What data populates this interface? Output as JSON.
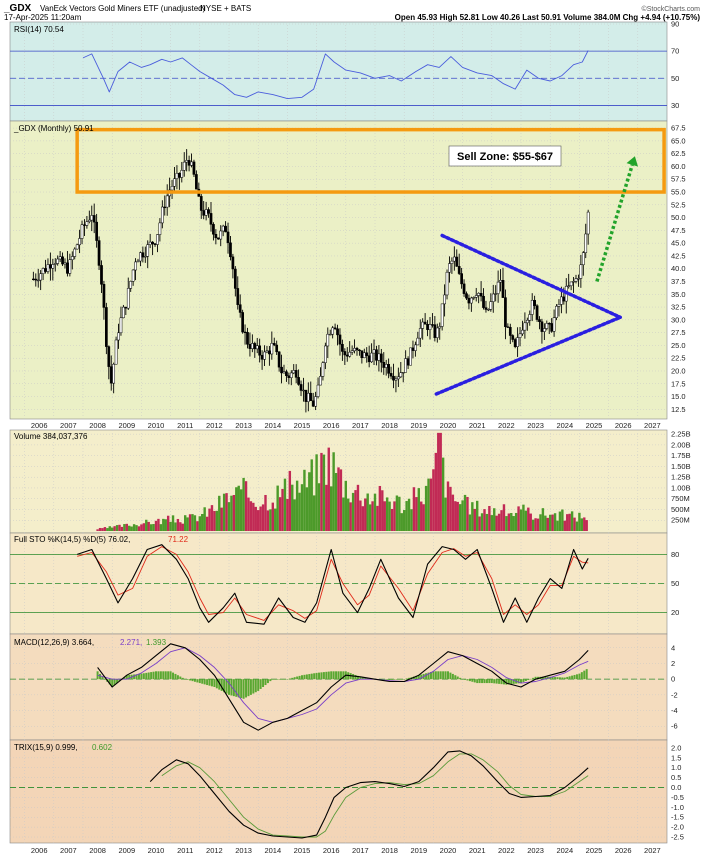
{
  "header": {
    "symbol": "_GDX",
    "name": "VanEck Vectors Gold Miners ETF (unadjusted)",
    "exchange": "NYSE + BATS",
    "date": "17-Apr-2025 11:20am",
    "quote": "Open 45.93  High 52.81  Low 40.26  Last 50.91  Volume 384.0M  Chg +4.94 (+10.75%)",
    "logo": "©StockCharts.com"
  },
  "colors": {
    "rsi_bg": "#d3ede9",
    "price_bg": "#ebf0c6",
    "volume_bg": "#f4eecb",
    "sto_bg": "#f6e8c8",
    "macd_bg": "#f4dcbe",
    "trix_bg": "#f3d5b7",
    "sell_zone": "#f59a10",
    "triangle": "#2a1fe0",
    "arrow": "#22a32a",
    "candle": "#000000",
    "vol_up": "#4c9a2a",
    "vol_down": "#c12a55",
    "rsi_line": "#4a5ddc",
    "sto_k": "#000000",
    "sto_d": "#e02a1a",
    "macd_line": "#000000",
    "macd_signal": "#7a3fc8",
    "macd_hist": "#5aa832"
  },
  "chart_data": [
    {
      "id": "rsi",
      "type": "line",
      "legend": "RSI(14) 70.54",
      "ylim": [
        20,
        90
      ],
      "yticks": [
        30,
        50,
        70,
        90
      ],
      "levels": [
        30,
        50,
        70
      ],
      "x": [
        2008.0,
        2008.3,
        2008.7,
        2008.9,
        2009.2,
        2009.6,
        2010.0,
        2010.3,
        2010.7,
        2011.0,
        2011.4,
        2011.7,
        2012.0,
        2012.4,
        2012.8,
        2013.2,
        2013.6,
        2014.0,
        2014.5,
        2015.0,
        2015.5,
        2015.9,
        2016.3,
        2016.6,
        2017.0,
        2017.5,
        2018.0,
        2018.5,
        2018.9,
        2019.4,
        2019.8,
        2020.2,
        2020.6,
        2021.0,
        2021.5,
        2022.0,
        2022.4,
        2022.8,
        2023.2,
        2023.6,
        2024.0,
        2024.4,
        2024.8,
        2025.1,
        2025.3
      ],
      "y": [
        65,
        68,
        50,
        40,
        55,
        62,
        58,
        60,
        64,
        62,
        65,
        60,
        55,
        50,
        45,
        38,
        36,
        40,
        38,
        35,
        36,
        42,
        68,
        62,
        56,
        54,
        50,
        52,
        48,
        55,
        60,
        58,
        66,
        58,
        54,
        52,
        46,
        42,
        56,
        50,
        48,
        52,
        60,
        62,
        70.54
      ]
    },
    {
      "id": "price",
      "type": "candlestick",
      "legend": "_GDX (Monthly) 50.91",
      "ylim": [
        11,
        68.5
      ],
      "yticks": [
        12.5,
        15.0,
        17.5,
        20.0,
        22.5,
        25.0,
        27.5,
        30.0,
        32.5,
        35.0,
        37.5,
        40.0,
        42.5,
        45.0,
        47.5,
        50.0,
        52.5,
        55.0,
        57.5,
        60.0,
        62.5,
        65.0,
        67.5
      ],
      "ytick_labels": [
        "12.5",
        "15.0",
        "17.5",
        "20.0",
        "22.5",
        "25.0",
        "27.5",
        "30.0",
        "32.5",
        "35.0",
        "37.5",
        "40.0",
        "42.5",
        "45.0",
        "47.5",
        "50.0",
        "52.5",
        "55.0",
        "57.5",
        "60.0",
        "62.5",
        "65.0",
        "67.5"
      ],
      "x": [
        2006.3,
        2006.7,
        2007.0,
        2007.5,
        2008.0,
        2008.3,
        2008.6,
        2008.8,
        2008.95,
        2009.2,
        2009.5,
        2009.8,
        2010.2,
        2010.5,
        2010.8,
        2011.0,
        2011.3,
        2011.6,
        2011.8,
        2012.0,
        2012.3,
        2012.6,
        2012.9,
        2013.1,
        2013.3,
        2013.6,
        2013.9,
        2014.2,
        2014.5,
        2014.8,
        2015.0,
        2015.3,
        2015.6,
        2015.9,
        2016.1,
        2016.3,
        2016.6,
        2016.9,
        2017.2,
        2017.6,
        2018.0,
        2018.4,
        2018.7,
        2018.9,
        2019.2,
        2019.5,
        2019.8,
        2020.1,
        2020.25,
        2020.5,
        2020.7,
        2020.9,
        2021.2,
        2021.5,
        2021.8,
        2022.1,
        2022.3,
        2022.5,
        2022.8,
        2023.1,
        2023.4,
        2023.7,
        2024.0,
        2024.3,
        2024.6,
        2024.9,
        2025.1,
        2025.3
      ],
      "y": [
        38,
        40,
        42,
        40,
        48,
        51,
        40,
        26,
        17,
        28,
        34,
        42,
        44,
        46,
        53,
        56,
        58,
        62,
        58,
        52,
        50,
        46,
        48,
        42,
        32,
        26,
        24,
        23,
        25,
        20,
        19,
        20,
        15,
        13.5,
        17,
        26,
        30,
        23,
        24,
        23,
        23,
        21,
        19,
        20,
        23,
        28,
        29,
        27,
        30,
        40,
        42,
        38,
        34,
        36,
        31,
        35,
        38,
        28,
        24,
        30,
        33,
        29,
        28,
        33,
        36,
        38,
        41,
        50.91
      ]
    },
    {
      "id": "volume",
      "type": "bar",
      "legend": "Volume 384,037,376",
      "ylim": [
        0,
        2.3
      ],
      "yticks": [
        0.25,
        0.5,
        0.75,
        1.0,
        1.25,
        1.5,
        1.75,
        2.0,
        2.25
      ],
      "ytick_labels": [
        "250M",
        "500M",
        "750M",
        "1.00B",
        "1.25B",
        "1.50B",
        "1.75B",
        "2.00B",
        "2.25B"
      ],
      "x": [
        2008.5,
        2009.0,
        2009.5,
        2010.0,
        2010.5,
        2011.0,
        2011.5,
        2012.0,
        2012.5,
        2013.0,
        2013.5,
        2014.0,
        2014.5,
        2015.0,
        2015.5,
        2016.0,
        2016.3,
        2016.6,
        2017.0,
        2017.5,
        2018.0,
        2018.5,
        2019.0,
        2019.5,
        2020.0,
        2020.2,
        2020.5,
        2021.0,
        2021.5,
        2022.0,
        2022.5,
        2023.0,
        2023.5,
        2024.0,
        2024.5,
        2025.0,
        2025.3
      ],
      "y": [
        0.05,
        0.1,
        0.15,
        0.2,
        0.25,
        0.3,
        0.3,
        0.4,
        0.6,
        0.9,
        1.0,
        0.8,
        0.9,
        1.1,
        1.2,
        1.5,
        1.9,
        1.7,
        1.2,
        1.0,
        0.9,
        0.85,
        0.7,
        0.9,
        1.3,
        2.28,
        1.0,
        0.7,
        0.6,
        0.55,
        0.5,
        0.5,
        0.45,
        0.45,
        0.4,
        0.38,
        0.384
      ]
    },
    {
      "id": "sto",
      "type": "line",
      "legend_main": "Full STO %K(14,5) %D(5) 76.02,",
      "legend_d": "71.22",
      "ylim": [
        0,
        100
      ],
      "yticks": [
        20,
        50,
        80
      ],
      "levels": [
        20,
        50,
        80
      ],
      "series": [
        {
          "x": [
            2007.8,
            2008.3,
            2008.8,
            2009.2,
            2009.7,
            2010.2,
            2010.7,
            2011.2,
            2011.6,
            2012.0,
            2012.3,
            2012.8,
            2013.2,
            2013.6,
            2014.2,
            2014.7,
            2015.2,
            2015.6,
            2016.0,
            2016.5,
            2016.9,
            2017.4,
            2017.8,
            2018.2,
            2018.8,
            2019.3,
            2019.8,
            2020.3,
            2020.7,
            2021.1,
            2021.5,
            2022.0,
            2022.4,
            2022.8,
            2023.2,
            2023.6,
            2024.0,
            2024.4,
            2024.8,
            2025.1,
            2025.3
          ],
          "y": [
            80,
            85,
            55,
            30,
            55,
            85,
            90,
            75,
            55,
            25,
            10,
            25,
            40,
            10,
            8,
            35,
            15,
            10,
            30,
            85,
            40,
            20,
            45,
            75,
            35,
            15,
            70,
            88,
            85,
            75,
            85,
            45,
            10,
            35,
            10,
            35,
            55,
            45,
            85,
            65,
            76.02
          ]
        },
        {
          "x": [
            2007.8,
            2008.3,
            2008.8,
            2009.2,
            2009.7,
            2010.2,
            2010.7,
            2011.2,
            2011.6,
            2012.0,
            2012.3,
            2012.8,
            2013.2,
            2013.6,
            2014.2,
            2014.7,
            2015.2,
            2015.6,
            2016.0,
            2016.5,
            2016.9,
            2017.4,
            2017.8,
            2018.2,
            2018.8,
            2019.3,
            2019.8,
            2020.3,
            2020.7,
            2021.1,
            2021.5,
            2022.0,
            2022.4,
            2022.8,
            2023.2,
            2023.6,
            2024.0,
            2024.4,
            2024.8,
            2025.1,
            2025.3
          ],
          "y": [
            78,
            82,
            62,
            38,
            45,
            78,
            88,
            80,
            62,
            35,
            18,
            20,
            35,
            18,
            12,
            28,
            22,
            14,
            22,
            75,
            50,
            28,
            38,
            68,
            45,
            22,
            60,
            82,
            86,
            78,
            82,
            55,
            18,
            28,
            18,
            28,
            48,
            48,
            78,
            72,
            71.22
          ]
        }
      ]
    },
    {
      "id": "macd",
      "type": "line",
      "legend_main": "MACD(12,26,9) 3.664,",
      "legend_signal": "2.271,",
      "legend_hist": "1.393",
      "ylim": [
        -7.5,
        5.5
      ],
      "yticks": [
        -6,
        -4,
        -2,
        0,
        2,
        4
      ],
      "zero": 0,
      "series": [
        {
          "x": [
            2008.5,
            2009.0,
            2009.5,
            2010.0,
            2010.5,
            2011.0,
            2011.5,
            2012.0,
            2012.5,
            2013.0,
            2013.5,
            2014.0,
            2014.5,
            2015.0,
            2015.5,
            2016.0,
            2016.5,
            2017.0,
            2017.5,
            2018.0,
            2018.5,
            2019.0,
            2019.5,
            2020.0,
            2020.5,
            2021.0,
            2021.5,
            2022.0,
            2022.5,
            2023.0,
            2023.5,
            2024.0,
            2024.5,
            2025.0,
            2025.3
          ],
          "y": [
            1.5,
            -1.0,
            0.5,
            1.5,
            3.0,
            4.5,
            4.0,
            2.5,
            0.5,
            -2.5,
            -5.5,
            -6.5,
            -5.5,
            -5.0,
            -4.0,
            -3.0,
            -1.0,
            0.5,
            0.3,
            0.0,
            -0.3,
            -0.3,
            0.5,
            2.0,
            3.5,
            3.0,
            2.0,
            1.0,
            -0.5,
            -1.0,
            0.0,
            0.5,
            1.0,
            2.5,
            3.664
          ]
        },
        {
          "x": [
            2008.5,
            2009.0,
            2009.5,
            2010.0,
            2010.5,
            2011.0,
            2011.5,
            2012.0,
            2012.5,
            2013.0,
            2013.5,
            2014.0,
            2014.5,
            2015.0,
            2015.5,
            2016.0,
            2016.5,
            2017.0,
            2017.5,
            2018.0,
            2018.5,
            2019.0,
            2019.5,
            2020.0,
            2020.5,
            2021.0,
            2021.5,
            2022.0,
            2022.5,
            2023.0,
            2023.5,
            2024.0,
            2024.5,
            2025.0,
            2025.3
          ],
          "y": [
            0.5,
            0.0,
            0.0,
            0.8,
            2.0,
            3.5,
            4.0,
            3.0,
            1.5,
            -0.5,
            -3.0,
            -5.0,
            -5.5,
            -5.0,
            -4.5,
            -3.8,
            -2.0,
            -0.5,
            0.0,
            0.0,
            -0.2,
            -0.3,
            0.0,
            1.0,
            2.5,
            3.0,
            2.5,
            1.5,
            0.2,
            -0.5,
            -0.3,
            0.2,
            0.8,
            1.8,
            2.271
          ]
        },
        {
          "x": [
            2008.5,
            2009.0,
            2009.5,
            2010.0,
            2010.5,
            2011.0,
            2011.5,
            2012.0,
            2012.5,
            2013.0,
            2013.5,
            2014.0,
            2014.5,
            2015.0,
            2015.5,
            2016.0,
            2016.5,
            2017.0,
            2017.5,
            2018.0,
            2018.5,
            2019.0,
            2019.5,
            2020.0,
            2020.5,
            2021.0,
            2021.5,
            2022.0,
            2022.5,
            2023.0,
            2023.5,
            2024.0,
            2024.5,
            2025.0,
            2025.3
          ],
          "y": [
            1.0,
            -1.0,
            0.5,
            0.7,
            1.0,
            1.0,
            0.0,
            -0.5,
            -1.0,
            -2.0,
            -2.5,
            -1.5,
            0.0,
            0.0,
            0.5,
            0.8,
            1.0,
            1.0,
            0.3,
            0.0,
            -0.1,
            0.0,
            0.5,
            1.0,
            1.0,
            0.0,
            -0.5,
            -0.5,
            -0.7,
            -0.5,
            0.3,
            0.3,
            0.2,
            0.7,
            1.393
          ]
        }
      ]
    },
    {
      "id": "trix",
      "type": "line",
      "legend_main": "TRIX(15,9) 0.999,",
      "legend_signal": "0.602",
      "ylim": [
        -2.7,
        2.3
      ],
      "yticks": [
        -2.5,
        -2.0,
        -1.5,
        -1.0,
        -0.5,
        0.0,
        0.5,
        1.0,
        1.5,
        2.0
      ],
      "ytick_labels": [
        "-2.5",
        "-2.0",
        "-1.5",
        "-1.0",
        "-0.5",
        "0.0",
        "0.5",
        "1.0",
        "1.5",
        "2.0"
      ],
      "zero": 0,
      "series": [
        {
          "x": [
            2010.3,
            2010.7,
            2011.2,
            2011.6,
            2012.0,
            2012.5,
            2013.0,
            2013.5,
            2014.0,
            2014.5,
            2015.0,
            2015.5,
            2016.0,
            2016.3,
            2016.6,
            2017.0,
            2017.5,
            2018.0,
            2018.5,
            2019.0,
            2019.5,
            2020.0,
            2020.5,
            2020.9,
            2021.3,
            2021.7,
            2022.2,
            2022.6,
            2023.0,
            2023.5,
            2024.0,
            2024.5,
            2025.0,
            2025.3
          ],
          "y": [
            0.3,
            0.9,
            1.4,
            1.2,
            0.6,
            -0.3,
            -1.2,
            -1.9,
            -2.3,
            -2.45,
            -2.5,
            -2.55,
            -2.4,
            -1.5,
            -0.5,
            0.0,
            0.25,
            0.3,
            0.2,
            0.05,
            0.3,
            1.0,
            1.8,
            1.85,
            1.6,
            1.1,
            0.3,
            -0.3,
            -0.5,
            -0.45,
            -0.4,
            0.0,
            0.6,
            0.999
          ]
        },
        {
          "x": [
            2010.7,
            2011.2,
            2011.6,
            2012.0,
            2012.5,
            2013.0,
            2013.5,
            2014.0,
            2014.5,
            2015.0,
            2015.5,
            2016.0,
            2016.3,
            2016.6,
            2017.0,
            2017.5,
            2018.0,
            2018.5,
            2019.0,
            2019.5,
            2020.0,
            2020.5,
            2020.9,
            2021.3,
            2021.7,
            2022.2,
            2022.6,
            2023.0,
            2023.5,
            2024.0,
            2024.5,
            2025.0,
            2025.3
          ],
          "y": [
            0.6,
            1.1,
            1.3,
            1.0,
            0.3,
            -0.6,
            -1.5,
            -2.1,
            -2.4,
            -2.45,
            -2.5,
            -2.5,
            -2.2,
            -1.4,
            -0.5,
            0.0,
            0.2,
            0.25,
            0.15,
            0.2,
            0.6,
            1.3,
            1.7,
            1.7,
            1.4,
            0.8,
            0.1,
            -0.35,
            -0.45,
            -0.45,
            -0.2,
            0.3,
            0.602
          ]
        }
      ]
    }
  ],
  "x_axis": {
    "min": 2005.5,
    "max": 2028.0,
    "years": [
      "2006",
      "2007",
      "2008",
      "2009",
      "2010",
      "2011",
      "2012",
      "2013",
      "2014",
      "2015",
      "2016",
      "2017",
      "2018",
      "2019",
      "2020",
      "2021",
      "2022",
      "2023",
      "2024",
      "2025",
      "2026",
      "2027"
    ]
  },
  "annotations": {
    "sell_zone_label": "Sell Zone: $55-$67",
    "sell_zone_range": [
      55,
      67.2
    ],
    "sell_zone_x": [
      2007.8,
      2027.9
    ],
    "triangle_upper": [
      [
        2020.3,
        46.5
      ],
      [
        2026.4,
        30.5
      ]
    ],
    "triangle_lower": [
      [
        2020.1,
        15.5
      ],
      [
        2026.4,
        30.5
      ]
    ],
    "arrow_from": [
      2025.6,
      37.5
    ],
    "arrow_to": [
      2026.9,
      62.0
    ]
  }
}
